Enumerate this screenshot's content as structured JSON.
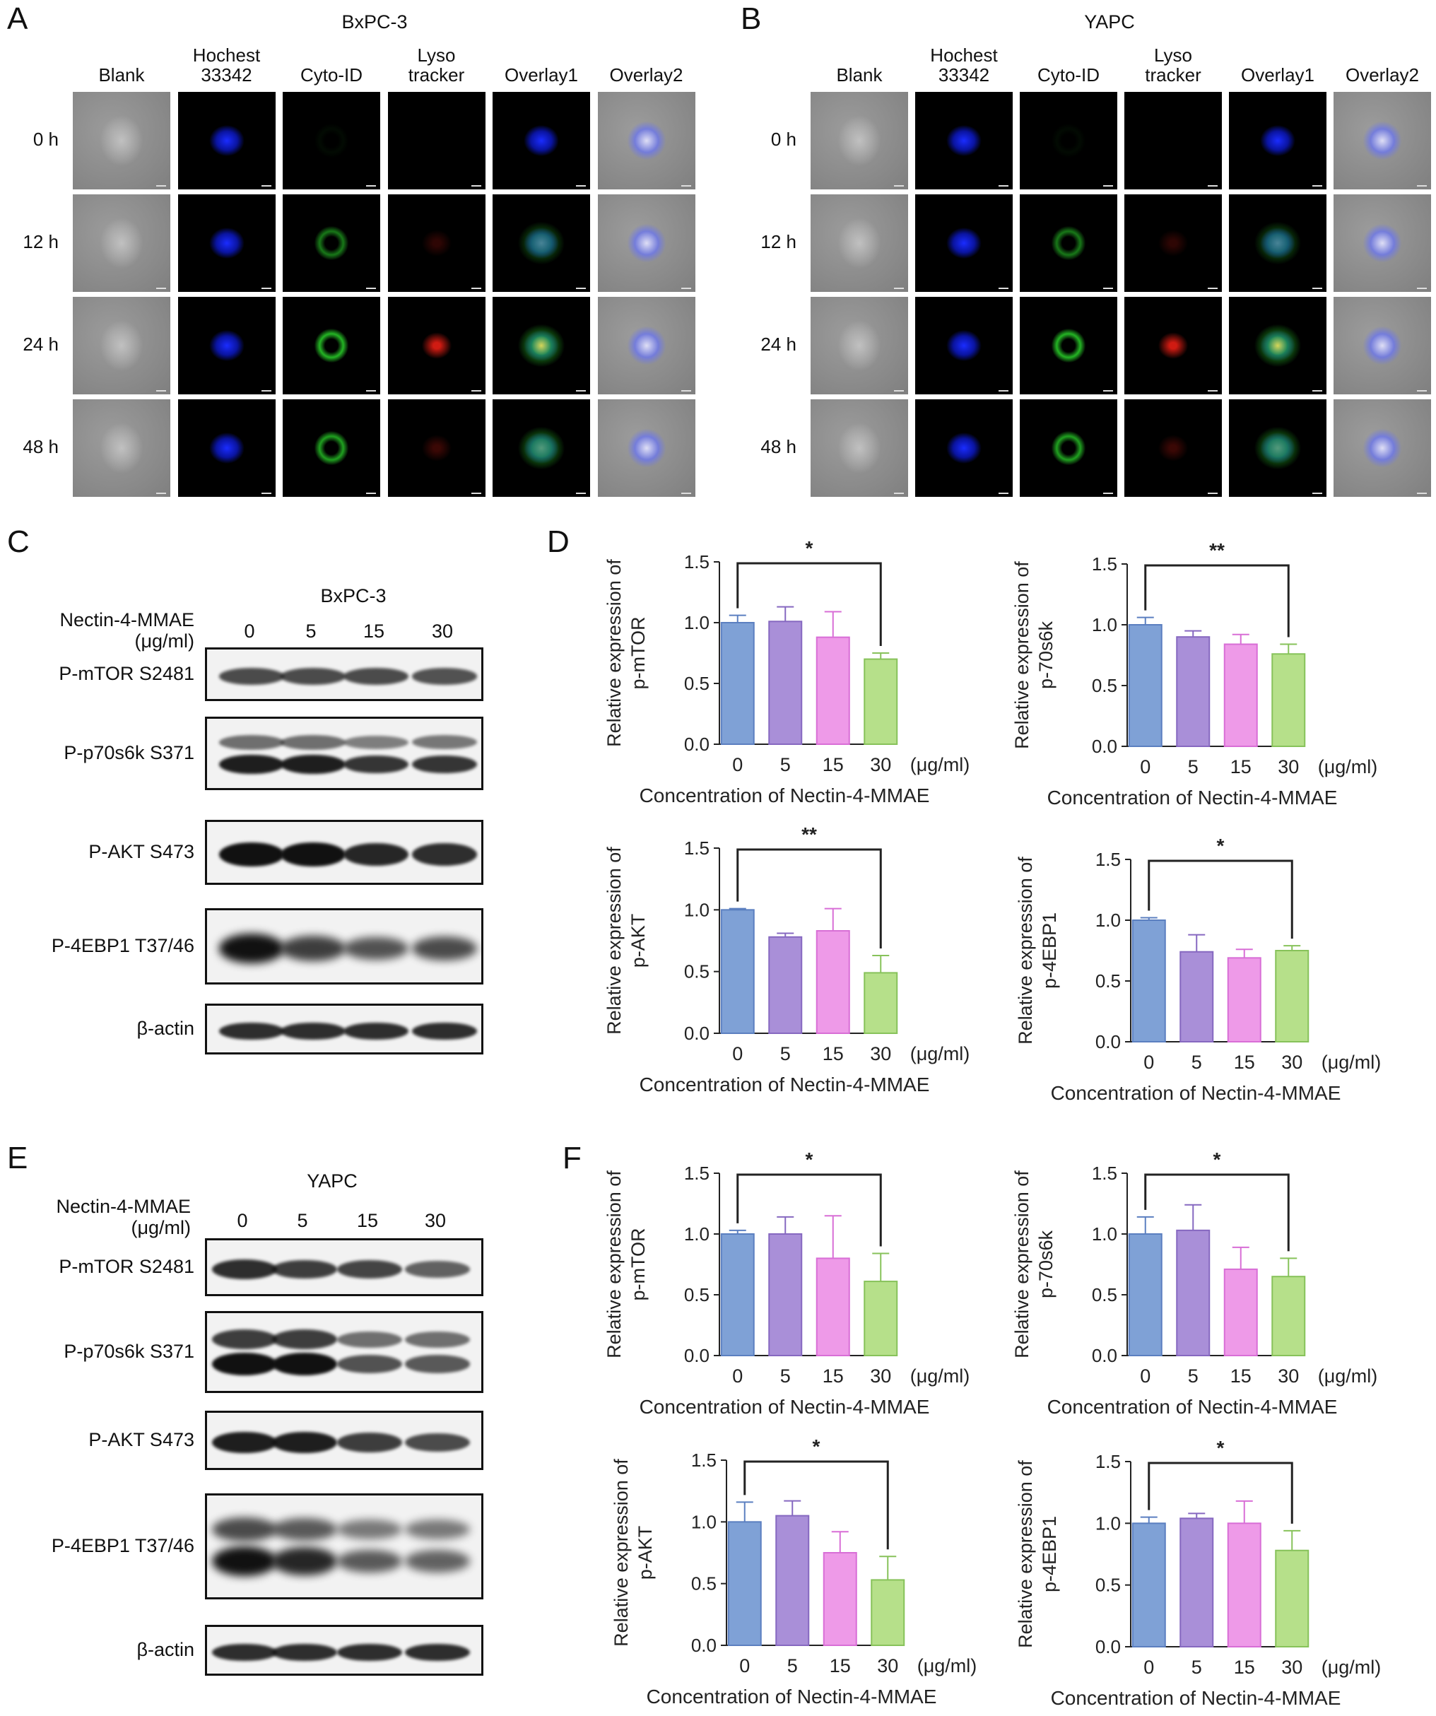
{
  "panels": {
    "A": {
      "letter": "A",
      "title": "BxPC-3",
      "columns": [
        "Blank",
        "Hochest\n33342",
        "Cyto-ID",
        "Lyso\ntracker",
        "Overlay1",
        "Overlay2"
      ],
      "rows": [
        "0 h",
        "12 h",
        "24 h",
        "48 h"
      ]
    },
    "B": {
      "letter": "B",
      "title": "YAPC",
      "columns": [
        "Blank",
        "Hochest\n33342",
        "Cyto-ID",
        "Lyso\ntracker",
        "Overlay1",
        "Overlay2"
      ],
      "rows": [
        "0 h",
        "12 h",
        "24 h",
        "48 h"
      ]
    },
    "C": {
      "letter": "C",
      "title": "BxPC-3",
      "treatment_label": "Nectin-4-MMAE\n(μg/ml)",
      "concentrations": [
        "0",
        "5",
        "15",
        "30"
      ],
      "blots": [
        "P-mTOR S2481",
        "P-p70s6k S371",
        "P-AKT S473",
        "P-4EBP1 T37/46",
        "β-actin"
      ]
    },
    "D": {
      "letter": "D"
    },
    "E": {
      "letter": "E",
      "title": "YAPC",
      "treatment_label": "Nectin-4-MMAE\n(μg/ml)",
      "concentrations": [
        "0",
        "5",
        "15",
        "30"
      ],
      "blots": [
        "P-mTOR S2481",
        "P-p70s6k S371",
        "P-AKT S473",
        "P-4EBP1 T37/46",
        "β-actin"
      ]
    },
    "F": {
      "letter": "F"
    }
  },
  "colors": {
    "bar_0": "#7fa1d6",
    "bar_5": "#a98fd8",
    "bar_15": "#ee9ae8",
    "bar_30": "#b6e08a",
    "edge_0": "#5b7fc0",
    "edge_5": "#8668c0",
    "edge_15": "#d86ed6",
    "edge_30": "#87c25a"
  },
  "chart_data": [
    {
      "panel": "D",
      "type": "bar",
      "categories": [
        "0",
        "5",
        "15",
        "30"
      ],
      "unit": "(μg/ml)",
      "values": [
        1.0,
        1.01,
        0.88,
        0.7
      ],
      "errors": [
        0.06,
        0.12,
        0.21,
        0.05
      ],
      "ylabel": "Relative expression of\np-mTOR",
      "xlabel": "Concentration of Nectin-4-MMAE",
      "ylim": [
        0,
        1.5
      ],
      "yticks": [
        "0.0",
        "0.5",
        "1.0",
        "1.5"
      ],
      "significance": "*",
      "sig_from": "0",
      "sig_to": "30"
    },
    {
      "panel": "D",
      "type": "bar",
      "categories": [
        "0",
        "5",
        "15",
        "30"
      ],
      "unit": "(μg/ml)",
      "values": [
        1.0,
        0.9,
        0.84,
        0.76
      ],
      "errors": [
        0.06,
        0.05,
        0.08,
        0.08
      ],
      "ylabel": "Relative expression of\np-70s6k",
      "xlabel": "Concentration of Nectin-4-MMAE",
      "ylim": [
        0,
        1.5
      ],
      "yticks": [
        "0.0",
        "0.5",
        "1.0",
        "1.5"
      ],
      "significance": "**",
      "sig_from": "0",
      "sig_to": "30"
    },
    {
      "panel": "D",
      "type": "bar",
      "categories": [
        "0",
        "5",
        "15",
        "30"
      ],
      "unit": "(μg/ml)",
      "values": [
        1.0,
        0.78,
        0.83,
        0.49
      ],
      "errors": [
        0.01,
        0.03,
        0.18,
        0.14
      ],
      "ylabel": "Relative expression of\np-AKT",
      "xlabel": "Concentration of Nectin-4-MMAE",
      "ylim": [
        0,
        1.5
      ],
      "yticks": [
        "0.0",
        "0.5",
        "1.0",
        "1.5"
      ],
      "significance": "**",
      "sig_from": "0",
      "sig_to": "30"
    },
    {
      "panel": "D",
      "type": "bar",
      "categories": [
        "0",
        "5",
        "15",
        "30"
      ],
      "unit": "(μg/ml)",
      "values": [
        1.0,
        0.74,
        0.69,
        0.75
      ],
      "errors": [
        0.02,
        0.14,
        0.07,
        0.04
      ],
      "ylabel": "Relative expression of\np-4EBP1",
      "xlabel": "Concentration of Nectin-4-MMAE",
      "ylim": [
        0,
        1.5
      ],
      "yticks": [
        "0.0",
        "0.5",
        "1.0",
        "1.5"
      ],
      "significance": "*",
      "sig_from": "0",
      "sig_to": "30"
    },
    {
      "panel": "F",
      "type": "bar",
      "categories": [
        "0",
        "5",
        "15",
        "30"
      ],
      "unit": "(μg/ml)",
      "values": [
        1.0,
        1.0,
        0.8,
        0.61
      ],
      "errors": [
        0.03,
        0.14,
        0.35,
        0.23
      ],
      "ylabel": "Relative expression of\np-mTOR",
      "xlabel": "Concentration of Nectin-4-MMAE",
      "ylim": [
        0,
        1.5
      ],
      "yticks": [
        "0.0",
        "0.5",
        "1.0",
        "1.5"
      ],
      "significance": "*",
      "sig_from": "0",
      "sig_to": "30"
    },
    {
      "panel": "F",
      "type": "bar",
      "categories": [
        "0",
        "5",
        "15",
        "30"
      ],
      "unit": "(μg/ml)",
      "values": [
        1.0,
        1.03,
        0.71,
        0.65
      ],
      "errors": [
        0.14,
        0.21,
        0.18,
        0.15
      ],
      "ylabel": "Relative expression of\np-70s6k",
      "xlabel": "Concentration of Nectin-4-MMAE",
      "ylim": [
        0,
        1.5
      ],
      "yticks": [
        "0.0",
        "0.5",
        "1.0",
        "1.5"
      ],
      "significance": "*",
      "sig_from": "0",
      "sig_to": "30"
    },
    {
      "panel": "F",
      "type": "bar",
      "categories": [
        "0",
        "5",
        "15",
        "30"
      ],
      "unit": "(μg/ml)",
      "values": [
        1.0,
        1.05,
        0.75,
        0.53
      ],
      "errors": [
        0.16,
        0.12,
        0.17,
        0.19
      ],
      "ylabel": "Relative expression of\np-AKT",
      "xlabel": "Concentration of Nectin-4-MMAE",
      "ylim": [
        0,
        1.5
      ],
      "yticks": [
        "0.0",
        "0.5",
        "1.0",
        "1.5"
      ],
      "significance": "*",
      "sig_from": "0",
      "sig_to": "30"
    },
    {
      "panel": "F",
      "type": "bar",
      "categories": [
        "0",
        "5",
        "15",
        "30"
      ],
      "unit": "(μg/ml)",
      "values": [
        1.0,
        1.04,
        1.0,
        0.78
      ],
      "errors": [
        0.05,
        0.04,
        0.18,
        0.16
      ],
      "ylabel": "Relative expression of\np-4EBP1",
      "xlabel": "Concentration of Nectin-4-MMAE",
      "ylim": [
        0,
        1.5
      ],
      "yticks": [
        "0.0",
        "0.5",
        "1.0",
        "1.5"
      ],
      "significance": "*",
      "sig_from": "0",
      "sig_to": "30"
    }
  ]
}
